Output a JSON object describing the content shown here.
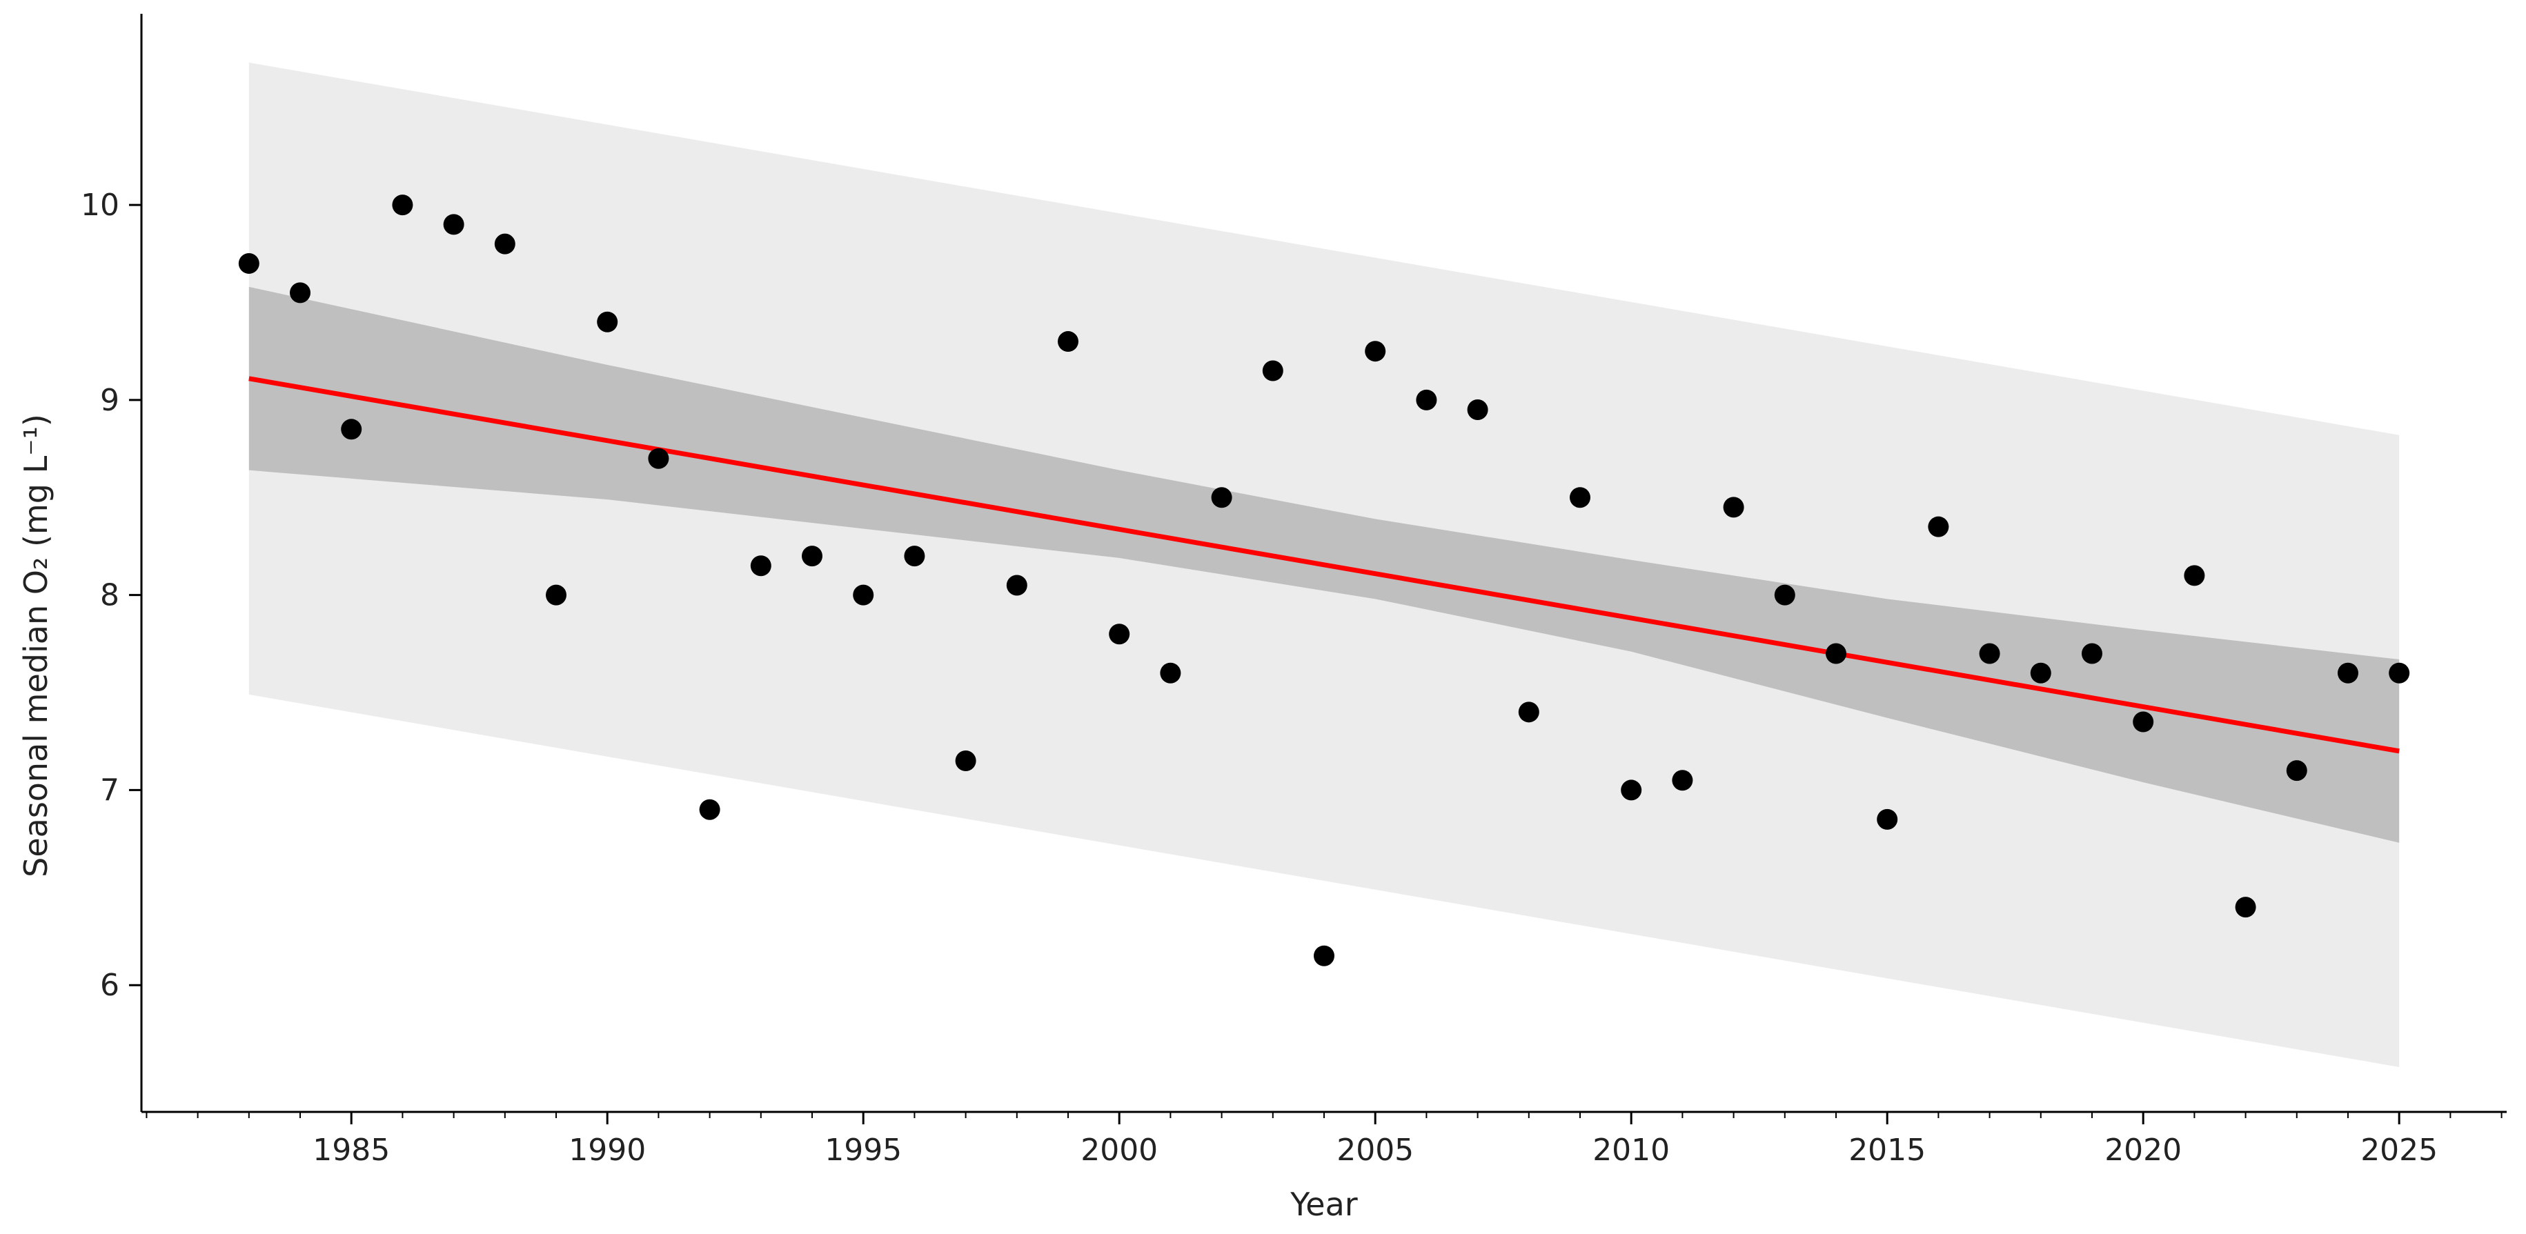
{
  "chart_data": {
    "type": "scatter",
    "title": "",
    "xlabel": "Year",
    "ylabel": "Seasonal median O₂ (mg L⁻¹)",
    "xlim": [
      1980.9,
      2027.1
    ],
    "ylim": [
      5.35,
      10.98
    ],
    "x_ticks": [
      1985,
      1990,
      1995,
      2000,
      2005,
      2010,
      2015,
      2020,
      2025
    ],
    "x_tick_labels": [
      "1985",
      "1990",
      "1995",
      "2000",
      "2005",
      "2010",
      "2015",
      "2020",
      "2025"
    ],
    "x_minor_step": 1,
    "y_ticks": [
      6,
      7,
      8,
      9,
      10
    ],
    "y_tick_labels": [
      "6",
      "7",
      "8",
      "9",
      "10"
    ],
    "grid": false,
    "legend": "none",
    "series": [
      {
        "type": "scatter",
        "color": "#000000",
        "points": [
          [
            1983,
            9.7
          ],
          [
            1984,
            9.55
          ],
          [
            1985,
            8.85
          ],
          [
            1986,
            10.0
          ],
          [
            1987,
            9.9
          ],
          [
            1988,
            9.8
          ],
          [
            1989,
            8.0
          ],
          [
            1990,
            9.4
          ],
          [
            1991,
            8.7
          ],
          [
            1992,
            6.9
          ],
          [
            1993,
            8.15
          ],
          [
            1994,
            8.2
          ],
          [
            1995,
            8.0
          ],
          [
            1996,
            8.2
          ],
          [
            1997,
            7.15
          ],
          [
            1998,
            8.05
          ],
          [
            1999,
            9.3
          ],
          [
            2000,
            7.8
          ],
          [
            2001,
            7.6
          ],
          [
            2002,
            8.5
          ],
          [
            2003,
            9.15
          ],
          [
            2004,
            6.15
          ],
          [
            2005,
            9.25
          ],
          [
            2006,
            9.0
          ],
          [
            2007,
            8.95
          ],
          [
            2008,
            7.4
          ],
          [
            2009,
            8.5
          ],
          [
            2010,
            7.0
          ],
          [
            2011,
            7.05
          ],
          [
            2012,
            8.45
          ],
          [
            2013,
            8.0
          ],
          [
            2014,
            7.7
          ],
          [
            2015,
            6.85
          ],
          [
            2016,
            8.35
          ],
          [
            2017,
            7.7
          ],
          [
            2018,
            7.6
          ],
          [
            2019,
            7.7
          ],
          [
            2020,
            7.35
          ],
          [
            2021,
            8.1
          ],
          [
            2022,
            6.4
          ],
          [
            2023,
            7.1
          ],
          [
            2024,
            7.6
          ],
          [
            2025,
            7.6
          ]
        ]
      },
      {
        "type": "line",
        "color": "#ff0000",
        "points": [
          [
            1983,
            9.11
          ],
          [
            2025,
            7.2
          ]
        ]
      }
    ],
    "bands": [
      {
        "kind": "prediction_interval",
        "color": "#d9d9d9",
        "opacity": 0.5,
        "upper": [
          [
            1983,
            10.73
          ],
          [
            2025,
            8.82
          ]
        ],
        "lower": [
          [
            1983,
            7.49
          ],
          [
            2025,
            5.58
          ]
        ]
      },
      {
        "kind": "confidence_interval",
        "color": "#8a8a8a",
        "opacity": 0.45,
        "upper": [
          [
            1983,
            9.58
          ],
          [
            1990,
            9.18
          ],
          [
            1995,
            8.91
          ],
          [
            2000,
            8.64
          ],
          [
            2005,
            8.39
          ],
          [
            2010,
            8.18
          ],
          [
            2015,
            7.98
          ],
          [
            2020,
            7.82
          ],
          [
            2025,
            7.67
          ]
        ],
        "lower": [
          [
            1983,
            8.64
          ],
          [
            1990,
            8.49
          ],
          [
            1995,
            8.34
          ],
          [
            2000,
            8.19
          ],
          [
            2005,
            7.98
          ],
          [
            2010,
            7.71
          ],
          [
            2015,
            7.37
          ],
          [
            2020,
            7.04
          ],
          [
            2025,
            6.73
          ]
        ]
      }
    ]
  }
}
